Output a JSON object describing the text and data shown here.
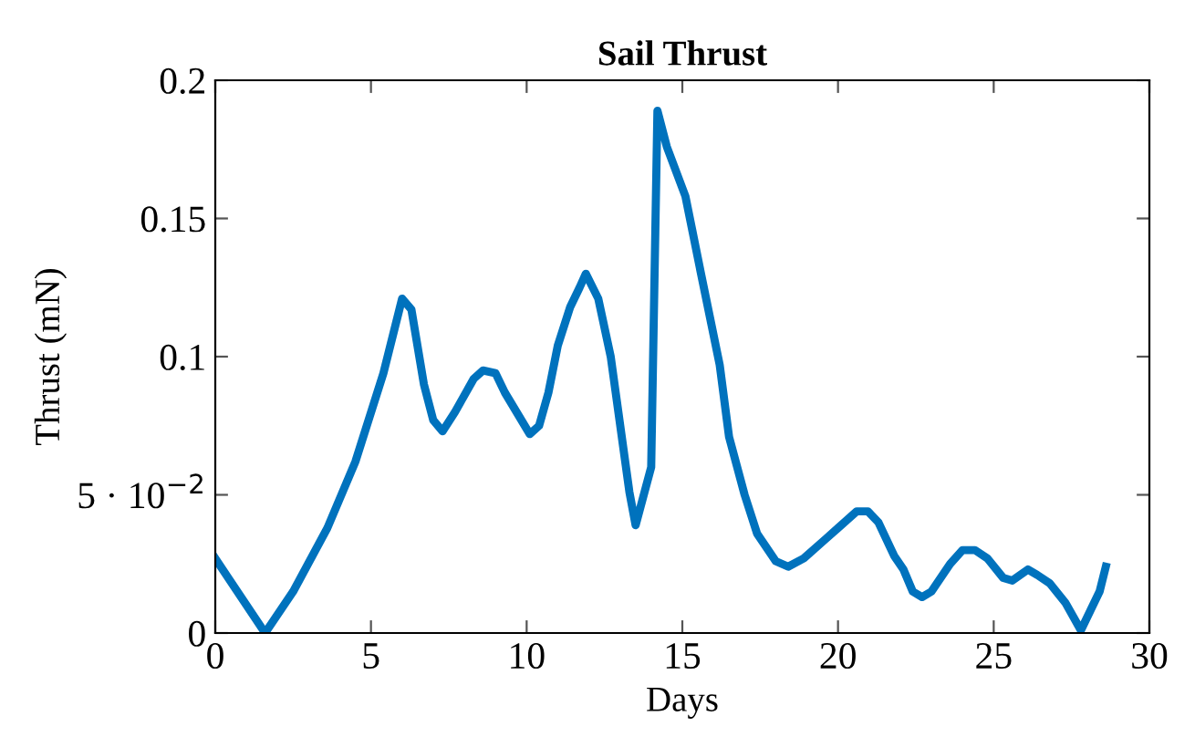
{
  "chart_data": {
    "type": "line",
    "title": "Sail Thrust",
    "xlabel": "Days",
    "ylabel": "Thrust (mN)",
    "xlim": [
      0,
      30
    ],
    "xticks": [
      0,
      5,
      10,
      15,
      20,
      25,
      30
    ],
    "ylim": [
      0,
      0.2
    ],
    "yticks": [
      0,
      {
        "value": 0.05,
        "label": "5 · 10$^{−2}$"
      },
      0.1,
      0.15,
      0.2
    ],
    "grid": false,
    "marker": "none",
    "line_style": "solid",
    "series": [
      {
        "color": "#0072bd",
        "x": [
          0,
          1.6,
          2.5,
          3.6,
          4.5,
          5.4,
          6.0,
          6.3,
          6.7,
          7.0,
          7.3,
          7.7,
          8.3,
          8.6,
          9.0,
          9.3,
          10.1,
          10.4,
          10.7,
          11.0,
          11.4,
          11.7,
          11.9,
          12.3,
          12.7,
          13.3,
          13.5,
          14.0,
          14.2,
          14.5,
          15.1,
          15.6,
          16.2,
          16.5,
          17.0,
          17.4,
          18.0,
          18.4,
          18.9,
          19.6,
          20.0,
          20.6,
          20.96,
          21.3,
          21.8,
          22.1,
          22.4,
          22.7,
          23.0,
          23.6,
          24.0,
          24.4,
          24.8,
          25.3,
          25.6,
          26.1,
          26.4,
          26.8,
          27.3,
          27.8,
          28.1,
          28.4,
          28.6
        ],
        "values": [
          0.027,
          0,
          0.015,
          0.038,
          0.062,
          0.094,
          0.121,
          0.117,
          0.09,
          0.077,
          0.073,
          0.08,
          0.092,
          0.095,
          0.094,
          0.087,
          0.072,
          0.075,
          0.087,
          0.104,
          0.118,
          0.125,
          0.13,
          0.121,
          0.1,
          0.051,
          0.039,
          0.06,
          0.189,
          0.176,
          0.158,
          0.13,
          0.097,
          0.071,
          0.05,
          0.036,
          0.026,
          0.024,
          0.027,
          0.034,
          0.038,
          0.044,
          0.044,
          0.04,
          0.028,
          0.023,
          0.015,
          0.013,
          0.015,
          0.025,
          0.03,
          0.03,
          0.027,
          0.02,
          0.019,
          0.023,
          0.021,
          0.018,
          0.011,
          0.001,
          0.008,
          0.015,
          0.024
        ]
      }
    ]
  }
}
